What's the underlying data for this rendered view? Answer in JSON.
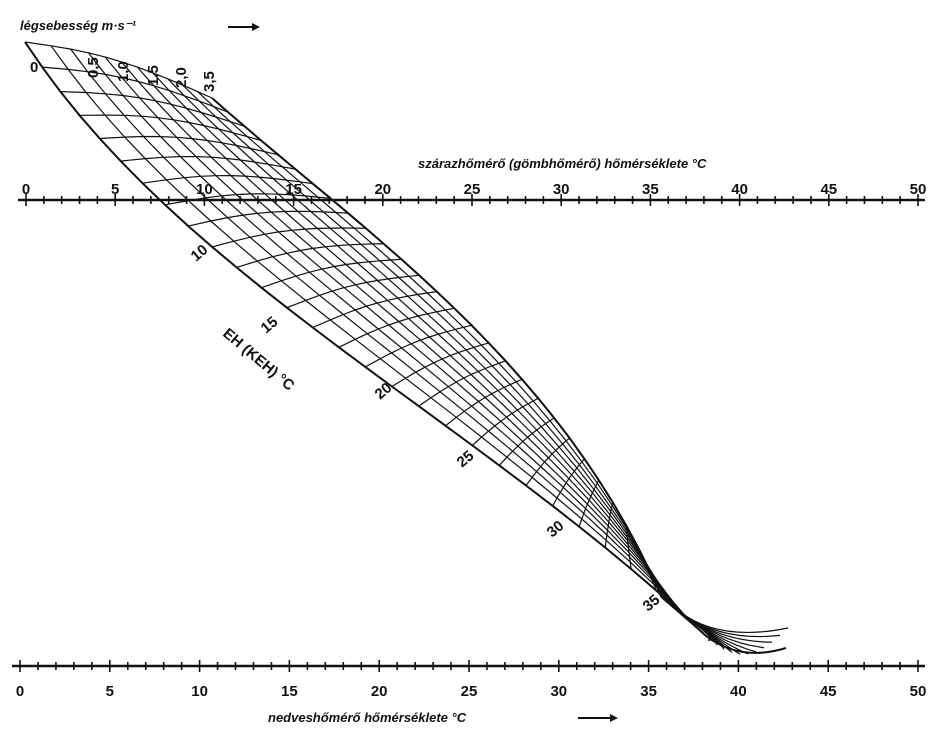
{
  "title": "légsebesség m·s⁻¹",
  "top_axis": {
    "label": "szárazhőmérő (gömbhőmérő) hőmérséklete °C",
    "ticks": [
      "0",
      "5",
      "10",
      "15",
      "20",
      "25",
      "30",
      "35",
      "40",
      "45",
      "50"
    ]
  },
  "bottom_axis": {
    "label": "nedveshőmérő hőmérséklete °C",
    "ticks": [
      "0",
      "5",
      "10",
      "15",
      "20",
      "25",
      "30",
      "35",
      "40",
      "45",
      "50"
    ]
  },
  "diagonal_axis": {
    "label": "EH (KEH) °C",
    "ticks": [
      "10",
      "15",
      "20",
      "25",
      "30",
      "35"
    ]
  },
  "air_speed_labels": [
    "0",
    "0,5",
    "1,0",
    "1,5",
    "2,0",
    "3,5"
  ]
}
